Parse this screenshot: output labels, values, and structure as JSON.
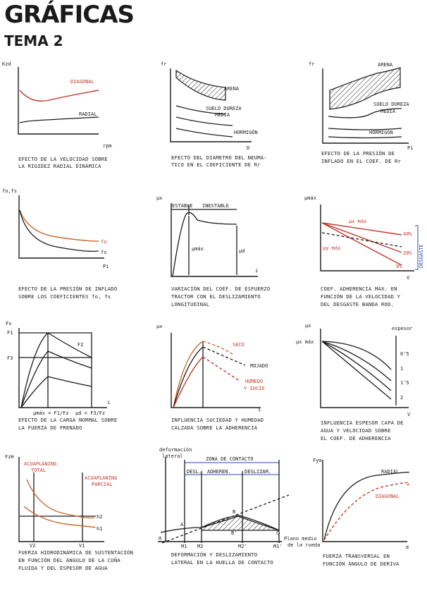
{
  "header": {
    "title": "GRÁFICAS",
    "subtitle": "TEMA 2"
  },
  "colors": {
    "ink": "#1a1a1a",
    "red": "#c0392b",
    "orange": "#c8692e",
    "blue": "#2c4aa8"
  },
  "charts": [
    {
      "ylabel": "Kzd",
      "xlabel": "rpm",
      "series": [
        "DIAGONAL",
        "RADIAL"
      ],
      "caption": [
        "EFECTO DE LA VELOCIDAD SOBRE",
        "LA RIGIDEZ RADIAL DINÁMICA"
      ]
    },
    {
      "ylabel": "fr",
      "xlabel": "D",
      "series": [
        "ARENA",
        "SUELO DUREZA",
        "MEDIA",
        "HORMIGÓN"
      ],
      "caption": [
        "EFECTO DEL DIÁMETRO DEL NEUMÁ-",
        "TICO EN EL COEFICIENTE DE Rr"
      ]
    },
    {
      "ylabel": "fr",
      "xlabel": "Pi",
      "series": [
        "ARENA",
        "SUELO DUREZA",
        "MEDIA",
        "HORMIGÓN"
      ],
      "caption": [
        "EFECTO DE LA PRESIÓN DE",
        "INFLADO EN EL COEF. DE Rr"
      ]
    },
    {
      "ylabel": "fo,fs",
      "xlabel": "Pi",
      "series": [
        "fo",
        "fs"
      ],
      "caption": [
        "EFECTO DE LA PRESIÓN DE INFLADO",
        "SOBRE LOS COEFICIENTES fo, fs"
      ]
    },
    {
      "ylabel": "μx",
      "xlabel": "i",
      "regions": [
        "ESTABLE",
        "INESTABLE"
      ],
      "series": [
        "μmáx",
        "μd"
      ],
      "caption": [
        "VARIACIÓN DEL COEF. DE ESFUERZO",
        "TRACTOR CON EL DESLIZAMIENTO",
        "LONGITUDINAL"
      ]
    },
    {
      "ylabel": "μmáx",
      "xlabel": "V",
      "series": [
        "μx máx",
        "μy máx",
        "40%",
        "20%",
        "0%"
      ],
      "side_label": "DESGASTE",
      "caption": [
        "COEF. ADHERENCIA MÁX. EN",
        "FUNCIÓN DE LA VELOCIDAD Y",
        "DEL DESGASTE BANDA ROD."
      ]
    },
    {
      "ylabel": "Fx",
      "xlabel": "i",
      "ticks": [
        "F1",
        "F3",
        "F2"
      ],
      "xmarks": [
        "μmáx = F1/Fz",
        "μd = F3/Fz"
      ],
      "caption": [
        "EFECTO DE LA CARGA NORMAL SOBRE",
        "LA FUERZA DE FRENADO"
      ]
    },
    {
      "ylabel": "μx",
      "xlabel": "i",
      "series": [
        "SECO",
        "MOJADO",
        "HÚMEDO",
        "Y SUCIO"
      ],
      "caption": [
        "INFLUENCIA SUCIEDAD Y HUMEDAD",
        "CALZADA SOBRE LA ADHERENCIA"
      ]
    },
    {
      "ylabel": "μx",
      "xlabel": "V",
      "ymark": "μx máx",
      "legend_title": "espesor",
      "levels": [
        "0'5",
        "1",
        "1'5",
        "2"
      ],
      "caption": [
        "INFLUENCIA ESPESOR CAPA DE",
        "AGUA Y VELOCIDAD SOBRE",
        "EL COEF. DE ADHERENCIA"
      ]
    },
    {
      "ylabel": "FzH",
      "labels": [
        "ACUAPLANING",
        "TOTAL",
        "ACUAPLANING",
        "PARCIAL"
      ],
      "series": [
        "h2",
        "h1"
      ],
      "xmarks": [
        "V2",
        "V1"
      ],
      "caption": [
        "FUERZA HIDRODINÁMICA DE SUSTENTACIÓN",
        "EN FUNCIÓN DEL ÁNGULO DE LA CUÑA",
        "FLUIDA Y DEL ESPESOR DE AGUA"
      ]
    },
    {
      "ylabel": [
        "deformación",
        "lateral"
      ],
      "zone": "ZONA DE CONTACTO",
      "zones": [
        "DESL.",
        "ADHEREN.",
        "DESLIZAM."
      ],
      "points": [
        "A",
        "B",
        "B'",
        "C"
      ],
      "xmarks": [
        "M1",
        "M2",
        "M2'",
        "M1'"
      ],
      "alpha": "α",
      "plane": [
        "Plano medio",
        "de la rueda"
      ],
      "caption": [
        "DEFORMACIÓN Y DESLIZAMIENTO",
        "LATERAL EN LA HUELLA DE CONTACTO"
      ]
    },
    {
      "ylabel": "Fyα",
      "xlabel": "α",
      "series": [
        "RADIAL",
        "DIAGONAL"
      ],
      "caption": [
        "FUERZA TRANSVERSAL EN",
        "FUNCIÓN ÁNGULO DE DERIVA"
      ]
    }
  ]
}
